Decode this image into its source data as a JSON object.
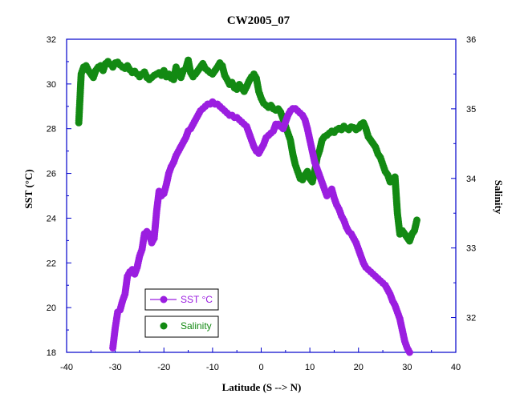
{
  "chart_data": {
    "type": "scatter",
    "title": "CW2005_07",
    "xlabel": "Latitude (S --> N)",
    "ylabel": "SST (°C)",
    "y2label": "Salinity",
    "xlim": [
      -40,
      40
    ],
    "ylim": [
      18,
      32
    ],
    "y2lim": [
      31.5,
      36
    ],
    "x_ticks": [
      -40,
      -30,
      -20,
      -10,
      0,
      10,
      20,
      30,
      40
    ],
    "y_ticks": [
      18,
      20,
      22,
      24,
      26,
      28,
      30,
      32
    ],
    "y2_ticks": [
      32,
      33,
      34,
      35,
      36
    ],
    "grid": false,
    "legend_position": "bottom-left",
    "series": [
      {
        "name": "SST °C",
        "axis": "left",
        "color": "#9b1ee0",
        "marker": "circle",
        "x": [
          -30.5,
          -30,
          -29.5,
          -29,
          -28.5,
          -28,
          -27.5,
          -27,
          -26.5,
          -26,
          -25.5,
          -25,
          -24.5,
          -24,
          -23.5,
          -23,
          -22.5,
          -22,
          -21.5,
          -21,
          -20.5,
          -20,
          -19.5,
          -19,
          -18.5,
          -18,
          -17.5,
          -17,
          -16.5,
          -16,
          -15.5,
          -15,
          -14.5,
          -14,
          -13.5,
          -13,
          -12.5,
          -12,
          -11.5,
          -11,
          -10.5,
          -10,
          -9.5,
          -9,
          -8.5,
          -8,
          -7.5,
          -7,
          -6.5,
          -6,
          -5.5,
          -5,
          -4.5,
          -4,
          -3.5,
          -3,
          -2.5,
          -2,
          -1.5,
          -1,
          -0.5,
          0,
          0.5,
          1,
          1.5,
          2,
          2.5,
          3,
          3.5,
          4,
          4.5,
          5,
          5.5,
          6,
          6.5,
          7,
          7.5,
          8,
          8.5,
          9,
          9.5,
          10,
          10.5,
          11,
          11.5,
          12,
          12.5,
          13,
          13.5,
          14,
          14.5,
          15,
          15.5,
          16,
          16.5,
          17,
          17.5,
          18,
          18.5,
          19,
          19.5,
          20,
          20.5,
          21,
          21.5,
          22,
          22.5,
          23,
          23.5,
          24,
          24.5,
          25,
          25.5,
          26,
          26.5,
          27,
          27.5,
          28,
          28.5,
          29,
          29.5,
          30,
          30.5
        ],
        "y": [
          18.2,
          19.1,
          19.8,
          19.9,
          20.3,
          20.6,
          21.4,
          21.6,
          21.7,
          21.5,
          21.8,
          22.3,
          22.6,
          23.3,
          23.4,
          23.3,
          22.9,
          23.1,
          24.3,
          25.2,
          25.0,
          25.1,
          25.5,
          26.0,
          26.3,
          26.5,
          26.8,
          27.0,
          27.2,
          27.4,
          27.6,
          27.9,
          28.0,
          28.2,
          28.4,
          28.6,
          28.8,
          28.9,
          29.0,
          29.1,
          29.1,
          29.2,
          29.1,
          29.1,
          29.0,
          28.9,
          28.8,
          28.7,
          28.6,
          28.6,
          28.5,
          28.5,
          28.4,
          28.3,
          28.2,
          28.1,
          27.8,
          27.5,
          27.2,
          27.0,
          26.9,
          27.1,
          27.3,
          27.6,
          27.7,
          27.8,
          27.9,
          28.2,
          28.2,
          28.1,
          28.0,
          28.3,
          28.6,
          28.8,
          28.9,
          28.9,
          28.8,
          28.7,
          28.6,
          28.4,
          28.0,
          27.5,
          27.0,
          26.5,
          26.2,
          25.9,
          25.6,
          25.3,
          25.0,
          25.1,
          25.3,
          24.9,
          24.6,
          24.4,
          24.1,
          23.9,
          23.6,
          23.4,
          23.3,
          23.1,
          22.9,
          22.6,
          22.3,
          22.0,
          21.8,
          21.7,
          21.6,
          21.5,
          21.4,
          21.3,
          21.2,
          21.1,
          21.0,
          20.8,
          20.6,
          20.3,
          20.1,
          19.8,
          19.5,
          19.0,
          18.5,
          18.2,
          18.0
        ]
      },
      {
        "name": "Salinity",
        "axis": "right",
        "color": "#138a13",
        "marker": "circle",
        "x": [
          -37.5,
          -37,
          -36.5,
          -36,
          -35.5,
          -35,
          -34.5,
          -34,
          -33.5,
          -33,
          -32.5,
          -32,
          -31.5,
          -31,
          -30.5,
          -30,
          -29.5,
          -29,
          -28.5,
          -28,
          -27.5,
          -27,
          -26.5,
          -26,
          -25.5,
          -25,
          -24.5,
          -24,
          -23.5,
          -23,
          -22.5,
          -22,
          -21.5,
          -21,
          -20.5,
          -20,
          -19.5,
          -19,
          -18.5,
          -18,
          -17.5,
          -17,
          -16.5,
          -16,
          -15.5,
          -15,
          -14.5,
          -14,
          -13.5,
          -13,
          -12.5,
          -12,
          -11.5,
          -11,
          -10.5,
          -10,
          -9.5,
          -9,
          -8.5,
          -8,
          -7.5,
          -7,
          -6.5,
          -6,
          -5.5,
          -5,
          -4.5,
          -4,
          -3.5,
          -3,
          -2.5,
          -2,
          -1.5,
          -1,
          -0.5,
          0,
          0.5,
          1,
          1.5,
          2,
          2.5,
          3,
          3.5,
          4,
          4.5,
          5,
          5.5,
          6,
          6.5,
          7,
          7.5,
          8,
          8.5,
          9,
          9.5,
          10,
          10.5,
          11,
          11.5,
          12,
          12.5,
          13,
          13.5,
          14,
          14.5,
          15,
          15.5,
          16,
          16.5,
          17,
          17.5,
          18,
          18.5,
          19,
          19.5,
          20,
          20.5,
          21,
          21.5,
          22,
          22.5,
          23,
          23.5,
          24,
          24.5,
          25,
          25.5,
          26,
          26.5,
          27,
          27.5,
          28,
          28.5,
          29,
          29.5,
          30,
          30.5,
          31,
          31.5,
          32
        ],
        "y": [
          34.8,
          35.5,
          35.6,
          35.62,
          35.55,
          35.5,
          35.45,
          35.55,
          35.6,
          35.62,
          35.55,
          35.65,
          35.68,
          35.64,
          35.6,
          35.66,
          35.67,
          35.63,
          35.6,
          35.58,
          35.62,
          35.56,
          35.52,
          35.54,
          35.5,
          35.46,
          35.5,
          35.53,
          35.45,
          35.42,
          35.45,
          35.48,
          35.5,
          35.52,
          35.48,
          35.55,
          35.46,
          35.5,
          35.44,
          35.42,
          35.6,
          35.5,
          35.45,
          35.55,
          35.58,
          35.7,
          35.52,
          35.46,
          35.5,
          35.55,
          35.6,
          35.65,
          35.58,
          35.55,
          35.52,
          35.5,
          35.55,
          35.6,
          35.66,
          35.62,
          35.48,
          35.42,
          35.35,
          35.38,
          35.3,
          35.28,
          35.35,
          35.3,
          35.25,
          35.32,
          35.4,
          35.46,
          35.5,
          35.44,
          35.25,
          35.15,
          35.08,
          35.05,
          35.02,
          35.05,
          35.0,
          34.98,
          35.0,
          34.95,
          34.85,
          34.75,
          34.65,
          34.55,
          34.35,
          34.2,
          34.1,
          34.0,
          33.98,
          34.05,
          34.1,
          34.0,
          33.95,
          34.1,
          34.3,
          34.4,
          34.55,
          34.6,
          34.62,
          34.65,
          34.68,
          34.66,
          34.7,
          34.72,
          34.7,
          34.75,
          34.72,
          34.7,
          34.74,
          34.73,
          34.7,
          34.72,
          34.78,
          34.8,
          34.72,
          34.6,
          34.55,
          34.5,
          34.45,
          34.35,
          34.3,
          34.2,
          34.1,
          34.05,
          33.95,
          34.0,
          34.02,
          33.5,
          33.2,
          33.25,
          33.2,
          33.15,
          33.1,
          33.2,
          33.25,
          33.4
        ]
      }
    ]
  }
}
